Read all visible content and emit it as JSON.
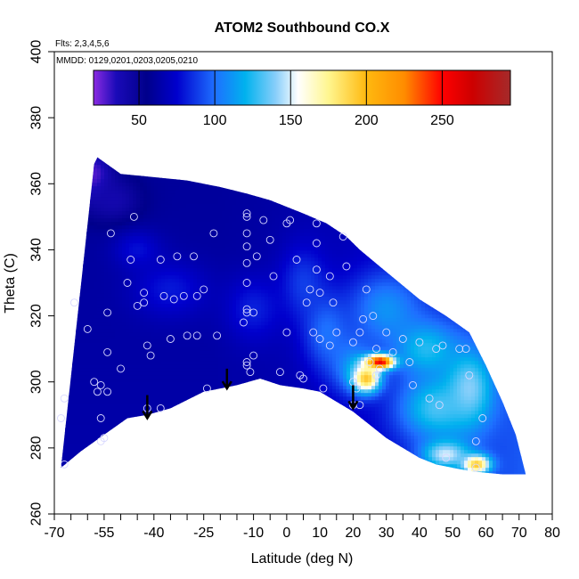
{
  "chart_data": {
    "type": "heatmap",
    "title": "ATOM2 Southbound CO.X",
    "flights_label": "Flts: 2,3,4,5,6",
    "dates_label": "MMDD: 0129,0201,0203,0205,0210",
    "xlabel": "Latitude (deg N)",
    "ylabel": "Theta (C)",
    "xlim": [
      -70,
      80
    ],
    "ylim": [
      260,
      400
    ],
    "x_ticks": [
      -70,
      -55,
      -40,
      -25,
      -10,
      0,
      10,
      20,
      30,
      40,
      50,
      60,
      70,
      80
    ],
    "x_tick_labels": [
      "-70",
      "-55",
      "-40",
      "-25",
      "-10",
      "0",
      "10",
      "20",
      "30",
      "40",
      "50",
      "60",
      "70",
      "80"
    ],
    "y_ticks": [
      260,
      280,
      300,
      320,
      340,
      360,
      380,
      400
    ],
    "y_tick_labels": [
      "260",
      "280",
      "300",
      "320",
      "340",
      "360",
      "380",
      "400"
    ],
    "colorbar": {
      "range": [
        20,
        295
      ],
      "ticks": [
        50,
        100,
        150,
        200,
        250
      ],
      "tick_labels": [
        "50",
        "100",
        "150",
        "200",
        "250"
      ],
      "stops": [
        {
          "value": 20,
          "color": "#8b2be2"
        },
        {
          "value": 35,
          "color": "#1a0ab8"
        },
        {
          "value": 55,
          "color": "#00008b"
        },
        {
          "value": 75,
          "color": "#0000cd"
        },
        {
          "value": 100,
          "color": "#1e6fff"
        },
        {
          "value": 120,
          "color": "#00b2ee"
        },
        {
          "value": 140,
          "color": "#87cefa"
        },
        {
          "value": 155,
          "color": "#ffffff"
        },
        {
          "value": 175,
          "color": "#fff68f"
        },
        {
          "value": 200,
          "color": "#ffb90f"
        },
        {
          "value": 225,
          "color": "#ff8c00"
        },
        {
          "value": 250,
          "color": "#ff0000"
        },
        {
          "value": 270,
          "color": "#cd0000"
        },
        {
          "value": 295,
          "color": "#a52a2a"
        }
      ]
    },
    "field": {
      "top_boundary": [
        [
          -58,
          366
        ],
        [
          -57,
          368
        ],
        [
          -50,
          363
        ],
        [
          -40,
          362
        ],
        [
          -30,
          361
        ],
        [
          -20,
          359
        ],
        [
          -12,
          357
        ],
        [
          -5,
          355
        ],
        [
          5,
          351
        ],
        [
          12,
          348
        ],
        [
          18,
          344
        ],
        [
          22,
          340
        ],
        [
          28,
          335
        ],
        [
          34,
          330
        ],
        [
          40,
          325
        ],
        [
          48,
          320
        ],
        [
          55,
          315
        ],
        [
          60,
          305
        ],
        [
          65,
          294
        ],
        [
          69,
          284
        ],
        [
          72,
          272
        ]
      ],
      "bottom_boundary": [
        [
          -68,
          274
        ],
        [
          -62,
          279
        ],
        [
          -55,
          284
        ],
        [
          -48,
          289
        ],
        [
          -42,
          290
        ],
        [
          -35,
          292
        ],
        [
          -25,
          297
        ],
        [
          -15,
          299
        ],
        [
          -8,
          301
        ],
        [
          -2,
          299
        ],
        [
          5,
          298
        ],
        [
          10,
          297
        ],
        [
          15,
          294
        ],
        [
          20,
          291
        ],
        [
          25,
          287
        ],
        [
          30,
          283
        ],
        [
          35,
          280
        ],
        [
          40,
          277
        ],
        [
          45,
          275
        ],
        [
          50,
          274
        ],
        [
          55,
          273
        ],
        [
          60,
          272.5
        ],
        [
          65,
          272
        ],
        [
          72,
          272
        ]
      ],
      "left_boundary_top": [
        -58,
        366
      ],
      "left_boundary_bottom": [
        -68,
        274
      ],
      "background_value": 62,
      "anomalies": [
        {
          "x": -58,
          "y": 362,
          "value": 25,
          "sx": 4,
          "sy": 6
        },
        {
          "x": -52,
          "y": 355,
          "value": 40,
          "sx": 6,
          "sy": 5
        },
        {
          "x": -35,
          "y": 328,
          "value": 80,
          "sx": 8,
          "sy": 6
        },
        {
          "x": -45,
          "y": 340,
          "value": 78,
          "sx": 5,
          "sy": 4
        },
        {
          "x": -10,
          "y": 322,
          "value": 82,
          "sx": 6,
          "sy": 7
        },
        {
          "x": 5,
          "y": 330,
          "value": 88,
          "sx": 5,
          "sy": 8
        },
        {
          "x": 12,
          "y": 315,
          "value": 100,
          "sx": 5,
          "sy": 8
        },
        {
          "x": 20,
          "y": 305,
          "value": 110,
          "sx": 5,
          "sy": 6
        },
        {
          "x": 30,
          "y": 322,
          "value": 110,
          "sx": 8,
          "sy": 8
        },
        {
          "x": 42,
          "y": 310,
          "value": 125,
          "sx": 7,
          "sy": 6
        },
        {
          "x": 45,
          "y": 292,
          "value": 130,
          "sx": 8,
          "sy": 7
        },
        {
          "x": 55,
          "y": 298,
          "value": 140,
          "sx": 5,
          "sy": 8
        },
        {
          "x": 28,
          "y": 306,
          "value": 265,
          "sx": 3,
          "sy": 1.5
        },
        {
          "x": 24,
          "y": 301,
          "value": 195,
          "sx": 3,
          "sy": 3
        },
        {
          "x": 57,
          "y": 275,
          "value": 200,
          "sx": 3,
          "sy": 2
        },
        {
          "x": 48,
          "y": 278,
          "value": 150,
          "sx": 5,
          "sy": 3
        }
      ]
    },
    "sample_points": [
      [
        -68,
        289
      ],
      [
        -67,
        295
      ],
      [
        -67,
        275
      ],
      [
        -64,
        324
      ],
      [
        -60,
        316
      ],
      [
        -58,
        300
      ],
      [
        -57,
        297
      ],
      [
        -56,
        299
      ],
      [
        -56,
        289
      ],
      [
        -56,
        282
      ],
      [
        -55,
        283
      ],
      [
        -54,
        297
      ],
      [
        -54,
        309
      ],
      [
        -54,
        321
      ],
      [
        -53,
        345
      ],
      [
        -50,
        304
      ],
      [
        -48,
        330
      ],
      [
        -47,
        337
      ],
      [
        -46,
        350
      ],
      [
        -45,
        323
      ],
      [
        -43,
        327
      ],
      [
        -43,
        324
      ],
      [
        -42,
        311
      ],
      [
        -42,
        292
      ],
      [
        -41,
        308
      ],
      [
        -38,
        337
      ],
      [
        -38,
        292
      ],
      [
        -37,
        326
      ],
      [
        -35,
        313
      ],
      [
        -34,
        325
      ],
      [
        -33,
        338
      ],
      [
        -31,
        326
      ],
      [
        -30,
        314
      ],
      [
        -28,
        338
      ],
      [
        -27,
        326
      ],
      [
        -27,
        314
      ],
      [
        -25,
        328
      ],
      [
        -24,
        298
      ],
      [
        -22,
        345
      ],
      [
        -21,
        314
      ],
      [
        -13,
        318
      ],
      [
        -12,
        351
      ],
      [
        -12,
        350
      ],
      [
        -12,
        345
      ],
      [
        -12,
        341
      ],
      [
        -12,
        336
      ],
      [
        -12,
        330
      ],
      [
        -12,
        322
      ],
      [
        -12,
        321
      ],
      [
        -12,
        305
      ],
      [
        -12,
        306
      ],
      [
        -11,
        303
      ],
      [
        -10,
        321
      ],
      [
        -10,
        308
      ],
      [
        -9,
        338
      ],
      [
        -7,
        349
      ],
      [
        -5,
        343
      ],
      [
        -4,
        332
      ],
      [
        -2,
        303
      ],
      [
        0,
        315
      ],
      [
        0,
        348
      ],
      [
        1,
        349
      ],
      [
        3,
        337
      ],
      [
        4,
        302
      ],
      [
        5,
        301
      ],
      [
        6,
        324
      ],
      [
        7,
        328
      ],
      [
        8,
        315
      ],
      [
        9,
        334
      ],
      [
        9,
        348
      ],
      [
        9,
        342
      ],
      [
        10,
        327
      ],
      [
        10,
        313
      ],
      [
        11,
        298
      ],
      [
        13,
        332
      ],
      [
        13,
        311
      ],
      [
        14,
        324
      ],
      [
        15,
        315
      ],
      [
        17,
        344
      ],
      [
        18,
        335
      ],
      [
        20,
        293
      ],
      [
        20,
        300
      ],
      [
        20,
        312
      ],
      [
        21,
        298
      ],
      [
        22,
        315
      ],
      [
        22,
        293
      ],
      [
        23,
        319
      ],
      [
        24,
        328
      ],
      [
        25,
        306
      ],
      [
        27,
        310
      ],
      [
        27,
        302
      ],
      [
        26,
        320
      ],
      [
        28,
        304
      ],
      [
        30,
        315
      ],
      [
        32,
        309
      ],
      [
        35,
        313
      ],
      [
        37,
        306
      ],
      [
        38,
        299
      ],
      [
        40,
        312
      ],
      [
        43,
        295
      ],
      [
        45,
        310
      ],
      [
        46,
        293
      ],
      [
        47,
        311
      ],
      [
        48,
        277
      ],
      [
        52,
        310
      ],
      [
        54,
        310
      ],
      [
        55,
        302
      ],
      [
        57,
        282
      ],
      [
        57,
        274
      ],
      [
        59,
        289
      ]
    ],
    "arrows": [
      {
        "x": -42,
        "y_top": 296,
        "y_bottom": 289
      },
      {
        "x": -18,
        "y_top": 304,
        "y_bottom": 298
      },
      {
        "x": 20,
        "y_top": 299,
        "y_bottom": 292
      }
    ]
  }
}
